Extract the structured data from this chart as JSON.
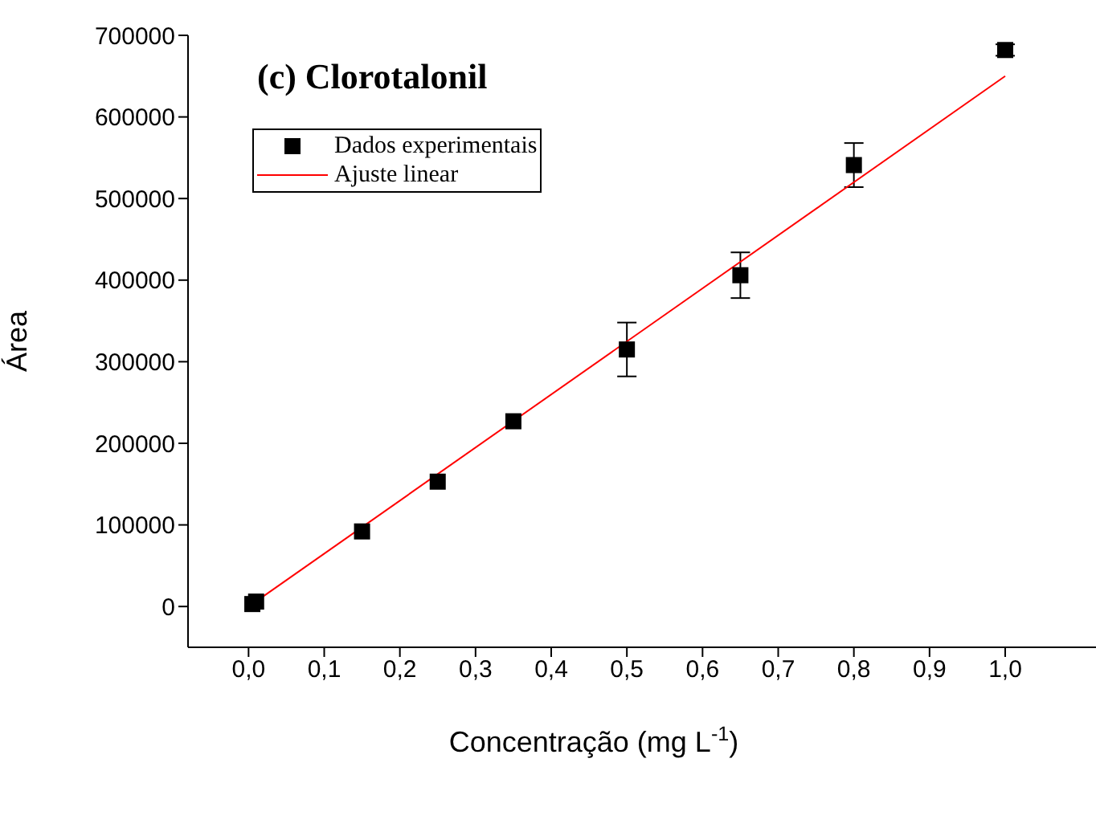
{
  "chart_data": {
    "type": "scatter",
    "title": "(c) Clorotalonil",
    "xlabel": "Concentração (mg L$^{-1}$)",
    "ylabel": "Área",
    "xlim": [
      -0.08,
      1.12
    ],
    "xticks": [
      {
        "value": 0.0,
        "label": "0,0"
      },
      {
        "value": 0.1,
        "label": "0,1"
      },
      {
        "value": 0.2,
        "label": "0,2"
      },
      {
        "value": 0.3,
        "label": "0,3"
      },
      {
        "value": 0.4,
        "label": "0,4"
      },
      {
        "value": 0.5,
        "label": "0,5"
      },
      {
        "value": 0.6,
        "label": "0,6"
      },
      {
        "value": 0.7,
        "label": "0,7"
      },
      {
        "value": 0.8,
        "label": "0,8"
      },
      {
        "value": 0.9,
        "label": "0,9"
      },
      {
        "value": 1.0,
        "label": "1,0"
      }
    ],
    "ylim": [
      -50000,
      700000
    ],
    "yticks": [
      0,
      100000,
      200000,
      300000,
      400000,
      500000,
      600000,
      700000
    ],
    "legend": "top left",
    "marker": "square",
    "series": [
      {
        "name": "Dados experimentais",
        "color": "#000000",
        "x": [
          0.005,
          0.01,
          0.15,
          0.25,
          0.35,
          0.5,
          0.65,
          0.8,
          1.0
        ],
        "values": [
          3000,
          6000,
          92000,
          153000,
          227000,
          315000,
          406000,
          541000,
          682000
        ],
        "errors": [
          null,
          null,
          null,
          null,
          null,
          33000,
          28000,
          27000,
          7000
        ]
      },
      {
        "name": "Ajuste linear",
        "type": "line",
        "color": "#ff0000",
        "x": [
          0.005,
          1.0
        ],
        "values": [
          3000,
          650000
        ],
        "marker": "none"
      }
    ]
  }
}
